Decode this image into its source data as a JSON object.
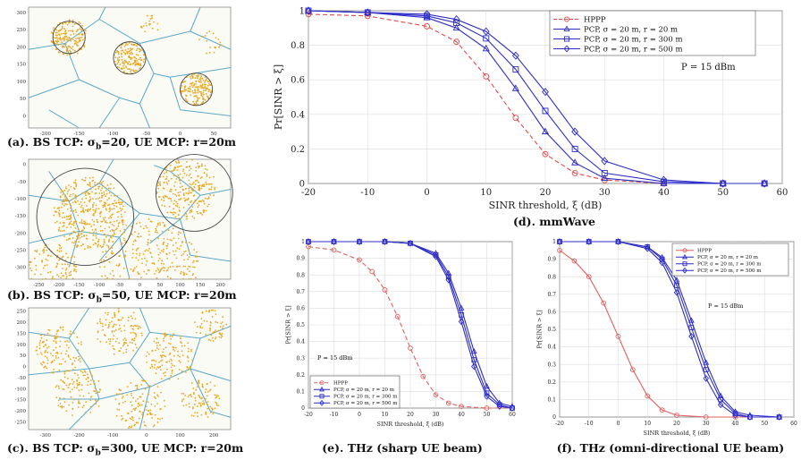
{
  "captions": {
    "a": "(a). BS TCP: σ",
    "a_sub": "b",
    "a_rest": "=20, UE MCP: r=20m",
    "b": "(b). BS TCP: σ",
    "b_sub": "b",
    "b_rest": "=50, UE MCP: r=20m",
    "c": "(c). BS TCP: σ",
    "c_sub": "b",
    "c_rest": "=300, UE MCP: r=20m",
    "d": "(d). mmWave",
    "e": "(e). THz (sharp UE beam)",
    "f": "(f). THz (omni-directional UE beam)"
  },
  "colors": {
    "hppp_d": "#e04a4a",
    "pcp": "#2c2cc8",
    "hppp_ef": "#e06060",
    "voronoi": "#5aa8c8",
    "points": "#e8a820",
    "circle": "#444444"
  },
  "chart_data": [
    {
      "id": "a",
      "type": "scatter",
      "xlim": [
        -230,
        80
      ],
      "ylim": [
        -10,
        300
      ],
      "x_ticks": [
        "-200",
        "-150",
        "-100",
        "-50",
        "0",
        "50"
      ],
      "y_ticks": [
        "300",
        "250",
        "200",
        "150",
        "100",
        "50",
        "0"
      ]
    },
    {
      "id": "b",
      "type": "scatter",
      "xlim": [
        -300,
        300
      ],
      "ylim": [
        -300,
        0
      ],
      "x_ticks": [
        "-250",
        "-200",
        "-150",
        "-100",
        "-50",
        "0",
        "50",
        "100",
        "150",
        "200"
      ],
      "y_ticks": [
        "0",
        "-50",
        "-100",
        "-150",
        "-200",
        "-250",
        "-300"
      ]
    },
    {
      "id": "c",
      "type": "scatter",
      "xlim": [
        -320,
        320
      ],
      "ylim": [
        -300,
        300
      ],
      "x_ticks": [
        "-300",
        "-200",
        "-100",
        "0",
        "100",
        "200"
      ],
      "y_ticks": [
        "250",
        "200",
        "150",
        "100",
        "50",
        "0",
        "-50",
        "-100",
        "-150",
        "-200",
        "-250"
      ]
    },
    {
      "id": "d",
      "type": "line",
      "xlabel": "SINR threshold, ξ (dB)",
      "ylabel": "Pr[SINR > ξ]",
      "xlim": [
        -20,
        60
      ],
      "ylim": [
        0,
        1
      ],
      "x_ticks": [
        -20,
        -10,
        0,
        10,
        20,
        30,
        40,
        50,
        60
      ],
      "y_ticks": [
        0,
        0.2,
        0.4,
        0.6,
        0.8,
        1
      ],
      "annotation": "P = 15 dBm",
      "legend_position": "top-right",
      "series": [
        {
          "name": "HPPP",
          "marker": "circle",
          "dashed": true,
          "x": [
            -20,
            -10,
            0,
            5,
            10,
            15,
            20,
            25,
            30,
            40,
            50,
            57
          ],
          "y": [
            0.98,
            0.97,
            0.91,
            0.82,
            0.62,
            0.38,
            0.17,
            0.06,
            0.02,
            0.0,
            0.0,
            0.0
          ]
        },
        {
          "name": "PCP, σ = 20 m, r = 20 m",
          "marker": "triangle",
          "dashed": false,
          "x": [
            -20,
            -10,
            0,
            5,
            10,
            15,
            20,
            25,
            30,
            40,
            50,
            57
          ],
          "y": [
            1.0,
            0.99,
            0.96,
            0.9,
            0.78,
            0.55,
            0.3,
            0.12,
            0.03,
            0.0,
            0.0,
            0.0
          ]
        },
        {
          "name": "PCP, σ = 20 m, r = 300 m",
          "marker": "square",
          "dashed": false,
          "x": [
            -20,
            -10,
            0,
            5,
            10,
            15,
            20,
            25,
            30,
            40,
            50,
            57
          ],
          "y": [
            1.0,
            0.99,
            0.97,
            0.93,
            0.84,
            0.66,
            0.42,
            0.2,
            0.06,
            0.01,
            0.0,
            0.0
          ]
        },
        {
          "name": "PCP, σ = 20 m, r = 500 m",
          "marker": "diamond",
          "dashed": false,
          "x": [
            -20,
            -10,
            0,
            5,
            10,
            15,
            20,
            25,
            30,
            40,
            50,
            57
          ],
          "y": [
            1.0,
            0.99,
            0.98,
            0.95,
            0.88,
            0.74,
            0.53,
            0.3,
            0.13,
            0.02,
            0.0,
            0.0
          ]
        }
      ]
    },
    {
      "id": "e",
      "type": "line",
      "xlabel": "SINR threshold, ξ (dB)",
      "ylabel": "Pr[SINR > ξ]",
      "xlim": [
        -20,
        60
      ],
      "ylim": [
        0,
        1
      ],
      "x_ticks": [
        -20,
        -10,
        0,
        10,
        20,
        30,
        40,
        50,
        60
      ],
      "y_ticks": [
        0,
        0.1,
        0.2,
        0.3,
        0.4,
        0.5,
        0.6,
        0.7,
        0.8,
        0.9,
        1
      ],
      "annotation": "P = 15 dBm",
      "legend_position": "bottom-left",
      "series": [
        {
          "name": "HPPP",
          "marker": "circle",
          "dashed": true,
          "x": [
            -20,
            -10,
            0,
            5,
            10,
            15,
            20,
            25,
            30,
            35,
            40,
            50,
            60
          ],
          "y": [
            0.97,
            0.95,
            0.89,
            0.82,
            0.71,
            0.55,
            0.36,
            0.19,
            0.08,
            0.03,
            0.01,
            0.0,
            0.0
          ]
        },
        {
          "name": "PCP, σ = 20 m, r = 20 m",
          "marker": "triangle",
          "dashed": false,
          "x": [
            -20,
            -10,
            0,
            10,
            20,
            30,
            35,
            40,
            45,
            50,
            55,
            60
          ],
          "y": [
            1.0,
            1.0,
            1.0,
            1.0,
            0.99,
            0.93,
            0.81,
            0.6,
            0.34,
            0.13,
            0.03,
            0.01
          ]
        },
        {
          "name": "PCP, σ = 20 m, r = 300 m",
          "marker": "square",
          "dashed": false,
          "x": [
            -20,
            -10,
            0,
            10,
            20,
            30,
            35,
            40,
            45,
            50,
            55,
            60
          ],
          "y": [
            1.0,
            1.0,
            1.0,
            1.0,
            0.99,
            0.92,
            0.79,
            0.56,
            0.29,
            0.09,
            0.02,
            0.0
          ]
        },
        {
          "name": "PCP, σ = 20 m, r = 500 m",
          "marker": "diamond",
          "dashed": false,
          "x": [
            -20,
            -10,
            0,
            10,
            20,
            30,
            35,
            40,
            45,
            50,
            55,
            60
          ],
          "y": [
            1.0,
            1.0,
            1.0,
            1.0,
            0.99,
            0.91,
            0.77,
            0.52,
            0.25,
            0.07,
            0.01,
            0.0
          ]
        }
      ]
    },
    {
      "id": "f",
      "type": "line",
      "xlabel": "SINR threshold, ξ (dB)",
      "ylabel": "Pr[SINR > ξ]",
      "xlim": [
        -20,
        60
      ],
      "ylim": [
        0,
        1
      ],
      "x_ticks": [
        -20,
        -10,
        0,
        10,
        20,
        30,
        40,
        50,
        60
      ],
      "y_ticks": [
        0,
        0.1,
        0.2,
        0.3,
        0.4,
        0.5,
        0.6,
        0.7,
        0.8,
        0.9,
        1
      ],
      "annotation": "P = 15 dBm",
      "legend_position": "top-right",
      "series": [
        {
          "name": "HPPP",
          "marker": "circle",
          "dashed": false,
          "x": [
            -20,
            -15,
            -10,
            -5,
            0,
            5,
            10,
            15,
            20,
            30,
            40,
            55
          ],
          "y": [
            0.95,
            0.89,
            0.8,
            0.65,
            0.46,
            0.27,
            0.12,
            0.04,
            0.01,
            0.0,
            0.0,
            0.0
          ]
        },
        {
          "name": "PCP, σ = 20 m, r = 20 m",
          "marker": "triangle",
          "dashed": false,
          "x": [
            -20,
            -10,
            0,
            10,
            15,
            20,
            25,
            30,
            35,
            40,
            45,
            55
          ],
          "y": [
            1.0,
            1.0,
            1.0,
            0.97,
            0.91,
            0.78,
            0.55,
            0.31,
            0.12,
            0.03,
            0.01,
            0.0
          ]
        },
        {
          "name": "PCP, σ = 20 m, r = 300 m",
          "marker": "square",
          "dashed": false,
          "x": [
            -20,
            -10,
            0,
            10,
            15,
            20,
            25,
            30,
            35,
            40,
            45,
            55
          ],
          "y": [
            1.0,
            1.0,
            1.0,
            0.97,
            0.9,
            0.75,
            0.51,
            0.27,
            0.1,
            0.02,
            0.0,
            0.0
          ]
        },
        {
          "name": "PCP, σ = 20 m, r = 500 m",
          "marker": "diamond",
          "dashed": false,
          "x": [
            -20,
            -10,
            0,
            10,
            15,
            20,
            25,
            30,
            35,
            40,
            45,
            55
          ],
          "y": [
            1.0,
            1.0,
            1.0,
            0.96,
            0.88,
            0.71,
            0.46,
            0.22,
            0.07,
            0.01,
            0.0,
            0.0
          ]
        }
      ]
    }
  ]
}
